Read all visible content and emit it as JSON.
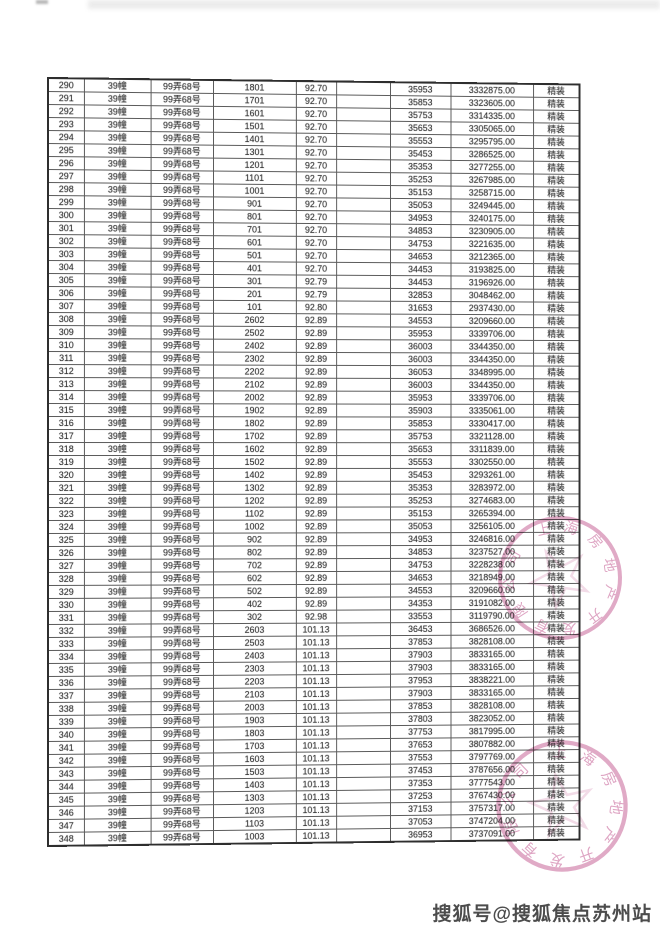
{
  "table": {
    "building": "39幢",
    "address": "99弄68号",
    "decoration": "精装",
    "rows": [
      [
        "290",
        "1801",
        "92.70",
        "35953",
        "3332875.00"
      ],
      [
        "291",
        "1701",
        "92.70",
        "35853",
        "3323605.00"
      ],
      [
        "292",
        "1601",
        "92.70",
        "35753",
        "3314335.00"
      ],
      [
        "293",
        "1501",
        "92.70",
        "35653",
        "3305065.00"
      ],
      [
        "294",
        "1401",
        "92.70",
        "35553",
        "3295795.00"
      ],
      [
        "295",
        "1301",
        "92.70",
        "35453",
        "3286525.00"
      ],
      [
        "296",
        "1201",
        "92.70",
        "35353",
        "3277255.00"
      ],
      [
        "297",
        "1101",
        "92.70",
        "35253",
        "3267985.00"
      ],
      [
        "298",
        "1001",
        "92.70",
        "35153",
        "3258715.00"
      ],
      [
        "299",
        "901",
        "92.70",
        "35053",
        "3249445.00"
      ],
      [
        "300",
        "801",
        "92.70",
        "34953",
        "3240175.00"
      ],
      [
        "301",
        "701",
        "92.70",
        "34853",
        "3230905.00"
      ],
      [
        "302",
        "601",
        "92.70",
        "34753",
        "3221635.00"
      ],
      [
        "303",
        "501",
        "92.70",
        "34653",
        "3212365.00"
      ],
      [
        "304",
        "401",
        "92.70",
        "34453",
        "3193825.00"
      ],
      [
        "305",
        "301",
        "92.79",
        "34453",
        "3196926.00"
      ],
      [
        "306",
        "201",
        "92.79",
        "32853",
        "3048462.00"
      ],
      [
        "307",
        "101",
        "92.80",
        "31653",
        "2937430.00"
      ],
      [
        "308",
        "2602",
        "92.89",
        "34553",
        "3209660.00"
      ],
      [
        "309",
        "2502",
        "92.89",
        "35953",
        "3339706.00"
      ],
      [
        "310",
        "2402",
        "92.89",
        "36003",
        "3344350.00"
      ],
      [
        "311",
        "2302",
        "92.89",
        "36003",
        "3344350.00"
      ],
      [
        "312",
        "2202",
        "92.89",
        "36053",
        "3348995.00"
      ],
      [
        "313",
        "2102",
        "92.89",
        "36003",
        "3344350.00"
      ],
      [
        "314",
        "2002",
        "92.89",
        "35953",
        "3339706.00"
      ],
      [
        "315",
        "1902",
        "92.89",
        "35903",
        "3335061.00"
      ],
      [
        "316",
        "1802",
        "92.89",
        "35853",
        "3330417.00"
      ],
      [
        "317",
        "1702",
        "92.89",
        "35753",
        "3321128.00"
      ],
      [
        "318",
        "1602",
        "92.89",
        "35653",
        "3311839.00"
      ],
      [
        "319",
        "1502",
        "92.89",
        "35553",
        "3302550.00"
      ],
      [
        "320",
        "1402",
        "92.89",
        "35453",
        "3293261.00"
      ],
      [
        "321",
        "1302",
        "92.89",
        "35353",
        "3283972.00"
      ],
      [
        "322",
        "1202",
        "92.89",
        "35253",
        "3274683.00"
      ],
      [
        "323",
        "1102",
        "92.89",
        "35153",
        "3265394.00"
      ],
      [
        "324",
        "1002",
        "92.89",
        "35053",
        "3256105.00"
      ],
      [
        "325",
        "902",
        "92.89",
        "34953",
        "3246816.00"
      ],
      [
        "326",
        "802",
        "92.89",
        "34853",
        "3237527.00"
      ],
      [
        "327",
        "702",
        "92.89",
        "34753",
        "3228238.00"
      ],
      [
        "328",
        "602",
        "92.89",
        "34653",
        "3218949.00"
      ],
      [
        "329",
        "502",
        "92.89",
        "34553",
        "3209660.00"
      ],
      [
        "330",
        "402",
        "92.89",
        "34353",
        "3191082.00"
      ],
      [
        "331",
        "302",
        "92.98",
        "33553",
        "3119790.00"
      ],
      [
        "332",
        "2603",
        "101.13",
        "36453",
        "3686526.00"
      ],
      [
        "333",
        "2503",
        "101.13",
        "37853",
        "3828108.00"
      ],
      [
        "334",
        "2403",
        "101.13",
        "37903",
        "3833165.00"
      ],
      [
        "335",
        "2303",
        "101.13",
        "37903",
        "3833165.00"
      ],
      [
        "336",
        "2203",
        "101.13",
        "37953",
        "3838221.00"
      ],
      [
        "337",
        "2103",
        "101.13",
        "37903",
        "3833165.00"
      ],
      [
        "338",
        "2003",
        "101.13",
        "37853",
        "3828108.00"
      ],
      [
        "339",
        "1903",
        "101.13",
        "37803",
        "3823052.00"
      ],
      [
        "340",
        "1803",
        "101.13",
        "37753",
        "3817995.00"
      ],
      [
        "341",
        "1703",
        "101.13",
        "37653",
        "3807882.00"
      ],
      [
        "342",
        "1603",
        "101.13",
        "37553",
        "3797769.00"
      ],
      [
        "343",
        "1503",
        "101.13",
        "37453",
        "3787656.00"
      ],
      [
        "344",
        "1403",
        "101.13",
        "37353",
        "3777543.00"
      ],
      [
        "345",
        "1303",
        "101.13",
        "37253",
        "3767430.00"
      ],
      [
        "346",
        "1203",
        "101.13",
        "37153",
        "3757317.00"
      ],
      [
        "347",
        "1103",
        "101.13",
        "37053",
        "3747204.00"
      ],
      [
        "348",
        "1003",
        "101.13",
        "36953",
        "3737091.00"
      ]
    ]
  },
  "stamps": {
    "rim_text": "上海房地产开发有限公司",
    "color": "#c2578f"
  },
  "watermark": {
    "text": "搜狐号@搜狐焦点苏州站"
  }
}
